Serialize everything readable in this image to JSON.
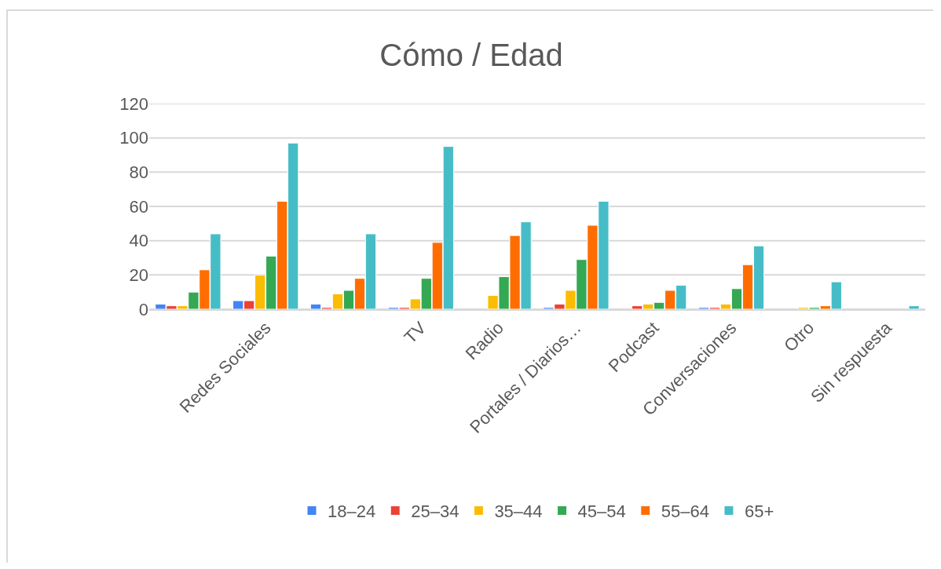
{
  "chart_data": {
    "type": "bar",
    "title": "Cómo / Edad",
    "categories": [
      null,
      "Redes Sociales",
      null,
      "TV",
      "Radio",
      "Portales / Diarios…",
      "Podcast",
      "Conversaciones",
      "Otro",
      "Sin respuesta"
    ],
    "series": [
      {
        "name": "18–24",
        "color": "#4285f4",
        "values": [
          3,
          5,
          3,
          1,
          null,
          1,
          null,
          1,
          null,
          null
        ]
      },
      {
        "name": "25–34",
        "color": "#ea4335",
        "values": [
          2,
          5,
          1,
          1,
          null,
          3,
          2,
          1,
          null,
          null
        ]
      },
      {
        "name": "35–44",
        "color": "#fbbc04",
        "values": [
          2,
          20,
          9,
          6,
          8,
          11,
          3,
          3,
          1,
          null
        ]
      },
      {
        "name": "45–54",
        "color": "#34a853",
        "values": [
          10,
          31,
          11,
          18,
          19,
          29,
          4,
          12,
          1,
          null
        ]
      },
      {
        "name": "55–64",
        "color": "#ff6d01",
        "values": [
          23,
          63,
          18,
          39,
          43,
          49,
          11,
          26,
          2,
          null
        ]
      },
      {
        "name": "65+",
        "color": "#46bdc6",
        "values": [
          44,
          97,
          44,
          95,
          51,
          63,
          14,
          37,
          16,
          2
        ]
      }
    ],
    "ylim": [
      0,
      120
    ],
    "yticks": [
      0,
      20,
      40,
      60,
      80,
      100,
      120
    ],
    "grid": "y",
    "legend": "bottom"
  }
}
